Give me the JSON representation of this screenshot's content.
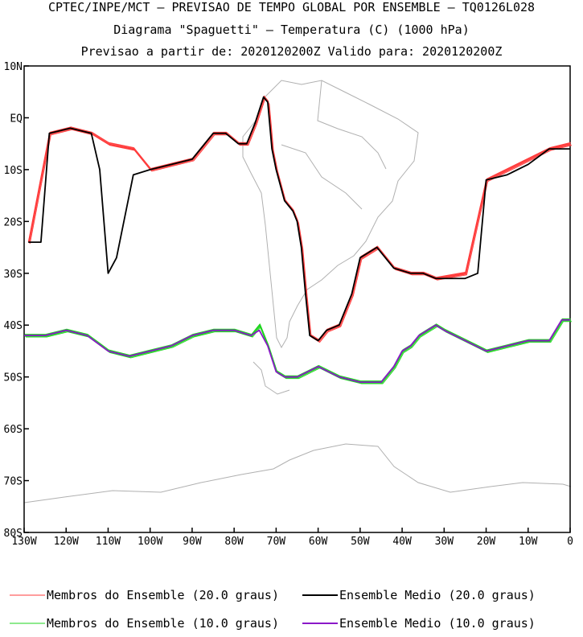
{
  "header": {
    "line1": "CPTEC/INPE/MCT – PREVISAO DE TEMPO GLOBAL POR ENSEMBLE – TQ0126L028",
    "line2": "Diagrama \"Spaguetti\" – Temperatura (C) (1000 hPa)",
    "line3": "Previsao a partir de: 2020120200Z  Valido para: 2020120200Z"
  },
  "chart_data": {
    "type": "line",
    "title": "Diagrama \"Spaguetti\" – Temperatura (C) (1000 hPa)",
    "xlim": [
      -130,
      0
    ],
    "ylim": [
      -80,
      10
    ],
    "x_ticks": [
      -130,
      -120,
      -110,
      -100,
      -90,
      -80,
      -70,
      -60,
      -50,
      -40,
      -30,
      -20,
      -10,
      0
    ],
    "x_tick_labels": [
      "130W",
      "120W",
      "110W",
      "100W",
      "90W",
      "80W",
      "70W",
      "60W",
      "50W",
      "40W",
      "30W",
      "20W",
      "10W",
      "0"
    ],
    "y_ticks": [
      10,
      0,
      -10,
      -20,
      -30,
      -40,
      -50,
      -60,
      -70,
      -80
    ],
    "y_tick_labels": [
      "10N",
      "EQ",
      "10S",
      "20S",
      "30S",
      "40S",
      "50S",
      "60S",
      "70S",
      "80S"
    ],
    "grid": false,
    "legend_placement": "bottom",
    "series": [
      {
        "name": "Membros do Ensemble (20.0 graus)",
        "color": "#ff3b3b",
        "x": [
          -129,
          -124,
          -119,
          -114,
          -110,
          -104,
          -100,
          -95,
          -90,
          -85,
          -82,
          -79,
          -77,
          -75,
          -73,
          -72,
          -71,
          -70,
          -69,
          -68,
          -67,
          -66,
          -65,
          -64,
          -63,
          -62,
          -60,
          -58,
          -55,
          -52,
          -50,
          -46,
          -42,
          -38,
          -35,
          -32,
          -25,
          -20,
          -15,
          -10,
          -5,
          0
        ],
        "y": [
          -24,
          -3,
          -2,
          -3,
          -5,
          -6,
          -10,
          -9,
          -8,
          -3,
          -3,
          -5,
          -5,
          -1,
          4,
          3,
          -6,
          -10,
          -13,
          -16,
          -17,
          -18,
          -20,
          -25,
          -34,
          -42,
          -43,
          -41,
          -40,
          -34,
          -27,
          -25,
          -29,
          -30,
          -30,
          -31,
          -30,
          -12,
          -10,
          -8,
          -6,
          -5
        ]
      },
      {
        "name": "Ensemble Medio (20.0 graus)",
        "color": "#000000",
        "x": [
          -129,
          -126,
          -124,
          -119,
          -114,
          -112,
          -110,
          -108,
          -104,
          -100,
          -95,
          -90,
          -85,
          -82,
          -79,
          -77,
          -75,
          -73,
          -72,
          -71,
          -70,
          -69,
          -68,
          -67,
          -66,
          -65,
          -64,
          -63,
          -62,
          -60,
          -58,
          -55,
          -52,
          -50,
          -46,
          -42,
          -38,
          -35,
          -32,
          -28,
          -25,
          -22,
          -20,
          -15,
          -10,
          -5,
          0
        ],
        "y": [
          -24,
          -24,
          -3,
          -2,
          -3,
          -10,
          -30,
          -27,
          -11,
          -10,
          -9,
          -8,
          -3,
          -3,
          -5,
          -5,
          -1,
          4,
          3,
          -6,
          -10,
          -13,
          -16,
          -17,
          -18,
          -20,
          -25,
          -34,
          -42,
          -43,
          -41,
          -40,
          -34,
          -27,
          -25,
          -29,
          -30,
          -30,
          -31,
          -31,
          -31,
          -30,
          -12,
          -11,
          -9,
          -6,
          -6
        ]
      },
      {
        "name": "Membros do Ensemble (10.0 graus)",
        "color": "#1ed41e",
        "x": [
          -130,
          -125,
          -120,
          -115,
          -110,
          -105,
          -100,
          -95,
          -90,
          -85,
          -80,
          -76,
          -74,
          -72,
          -70,
          -68,
          -65,
          -60,
          -55,
          -50,
          -45,
          -42,
          -40,
          -38,
          -36,
          -34,
          -32,
          -30,
          -25,
          -20,
          -15,
          -10,
          -5,
          -2,
          0
        ],
        "y": [
          -42,
          -42,
          -41,
          -42,
          -45,
          -46,
          -45,
          -44,
          -42,
          -41,
          -41,
          -42,
          -40,
          -44,
          -49,
          -50,
          -50,
          -48,
          -50,
          -51,
          -51,
          -48,
          -45,
          -44,
          -42,
          -41,
          -40,
          -41,
          -43,
          -45,
          -44,
          -43,
          -43,
          -39,
          -39
        ]
      },
      {
        "name": "Ensemble Medio (10.0 graus)",
        "color": "#8a18c8",
        "x": [
          -130,
          -125,
          -120,
          -115,
          -110,
          -105,
          -100,
          -95,
          -90,
          -85,
          -80,
          -76,
          -74,
          -72,
          -70,
          -68,
          -65,
          -60,
          -55,
          -50,
          -45,
          -42,
          -40,
          -38,
          -36,
          -34,
          -32,
          -30,
          -25,
          -20,
          -15,
          -10,
          -5,
          -2,
          0
        ],
        "y": [
          -42,
          -42,
          -41,
          -42,
          -45,
          -46,
          -45,
          -44,
          -42,
          -41,
          -41,
          -42,
          -41,
          -44,
          -49,
          -50,
          -50,
          -48,
          -50,
          -51,
          -51,
          -48,
          -45,
          -44,
          -42,
          -41,
          -40,
          -41,
          -43,
          -45,
          -44,
          -43,
          -43,
          -39,
          -39
        ]
      }
    ]
  }
}
